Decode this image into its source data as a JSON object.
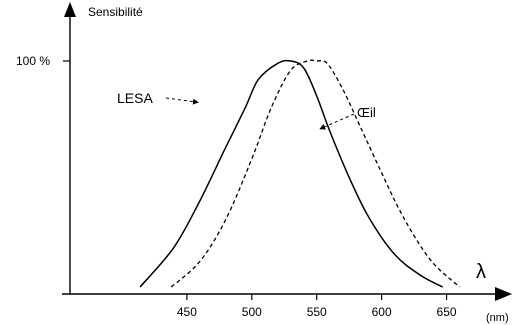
{
  "chart_data": {
    "type": "line",
    "ylabel": "Sensibilité",
    "xlabel": "(nm)",
    "x_symbol": "λ",
    "y_tick_label": "100 %",
    "y_tick_value": 100,
    "x_ticks": [
      "450",
      "500",
      "550",
      "600",
      "650"
    ],
    "x_tick_values": [
      450,
      500,
      550,
      600,
      650
    ],
    "xlim": [
      360,
      695
    ],
    "ylim": [
      0,
      112
    ],
    "series": [
      {
        "name": "LESA",
        "style": "solid",
        "x": [
          414,
          440,
          460,
          480,
          495,
          505,
          520,
          530,
          540,
          550,
          560,
          575,
          590,
          610,
          630,
          647
        ],
        "y": [
          3,
          20,
          40,
          63,
          80,
          92,
          99,
          100,
          97,
          85,
          70,
          50,
          33,
          17,
          8,
          3
        ]
      },
      {
        "name": "Œil",
        "style": "dashed",
        "x": [
          438,
          460,
          480,
          500,
          515,
          530,
          543,
          550,
          558,
          570,
          585,
          600,
          612,
          625,
          640,
          660
        ],
        "y": [
          3,
          14,
          32,
          58,
          80,
          96,
          100,
          100,
          99,
          88,
          70,
          52,
          38,
          25,
          13,
          3
        ]
      }
    ],
    "annotations": [
      {
        "text": "LESA",
        "target": "LESA"
      },
      {
        "text": "Œil",
        "target": "Œil"
      }
    ],
    "grid": false
  }
}
